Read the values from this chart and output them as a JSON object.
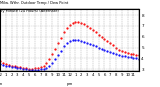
{
  "title": "Milw. Wthr. Outdoor Temp / Dew Point",
  "subtitle": "by Minute (24 Hours) (Alternate)",
  "background_color": "#ffffff",
  "plot_bg_color": "#ffffff",
  "grid_color": "#888888",
  "ylim": [
    28,
    86
  ],
  "yticks": [
    30,
    40,
    50,
    60,
    70,
    80
  ],
  "ytick_labels": [
    "3",
    "4",
    "5",
    "6",
    "7",
    "8"
  ],
  "xlim": [
    0,
    1439
  ],
  "xlabel_ticks": [
    0,
    60,
    120,
    180,
    240,
    300,
    360,
    420,
    480,
    540,
    600,
    660,
    720,
    780,
    840,
    900,
    960,
    1020,
    1080,
    1140,
    1200,
    1260,
    1320,
    1380
  ],
  "xlabel_labels": [
    "12",
    "1",
    "2",
    "3",
    "4",
    "5",
    "6",
    "7",
    "8",
    "9",
    "10",
    "11",
    "12",
    "1",
    "2",
    "3",
    "4",
    "5",
    "6",
    "7",
    "8",
    "9",
    "10",
    "11"
  ],
  "xlabel2_labels": [
    "am",
    "",
    "",
    "",
    "",
    "",
    "",
    "",
    "",
    "",
    "",
    "",
    "pm",
    "",
    "",
    "",
    "",
    "",
    "",
    "",
    "",
    "",
    "",
    ""
  ],
  "temp_color": "#ff0000",
  "dew_color": "#0000ff",
  "temp_x": [
    0,
    30,
    60,
    90,
    120,
    150,
    180,
    210,
    240,
    270,
    300,
    330,
    360,
    390,
    420,
    450,
    480,
    510,
    540,
    570,
    600,
    630,
    660,
    690,
    720,
    750,
    780,
    810,
    840,
    870,
    900,
    930,
    960,
    990,
    1020,
    1050,
    1080,
    1110,
    1140,
    1170,
    1200,
    1230,
    1260,
    1290,
    1320,
    1350,
    1380,
    1410,
    1439
  ],
  "temp_y": [
    38,
    36,
    35,
    34,
    33,
    33,
    32,
    32,
    31,
    31,
    30,
    30,
    31,
    31,
    32,
    33,
    36,
    39,
    44,
    49,
    54,
    59,
    64,
    68,
    71,
    73,
    74,
    74,
    73,
    72,
    70,
    68,
    66,
    64,
    62,
    60,
    58,
    56,
    54,
    52,
    50,
    48,
    47,
    46,
    45,
    44,
    44,
    43,
    43
  ],
  "dew_x": [
    0,
    30,
    60,
    90,
    120,
    150,
    180,
    210,
    240,
    270,
    300,
    330,
    360,
    390,
    420,
    450,
    480,
    510,
    540,
    570,
    600,
    630,
    660,
    690,
    720,
    750,
    780,
    810,
    840,
    870,
    900,
    930,
    960,
    990,
    1020,
    1050,
    1080,
    1110,
    1140,
    1170,
    1200,
    1230,
    1260,
    1290,
    1320,
    1350,
    1380,
    1410,
    1439
  ],
  "dew_y": [
    35,
    34,
    33,
    33,
    32,
    32,
    31,
    31,
    30,
    30,
    29,
    29,
    29,
    29,
    30,
    30,
    31,
    33,
    36,
    39,
    43,
    47,
    51,
    54,
    56,
    57,
    57,
    57,
    56,
    55,
    54,
    53,
    52,
    51,
    50,
    49,
    48,
    47,
    46,
    45,
    44,
    43,
    42,
    42,
    41,
    41,
    40,
    40,
    39
  ]
}
